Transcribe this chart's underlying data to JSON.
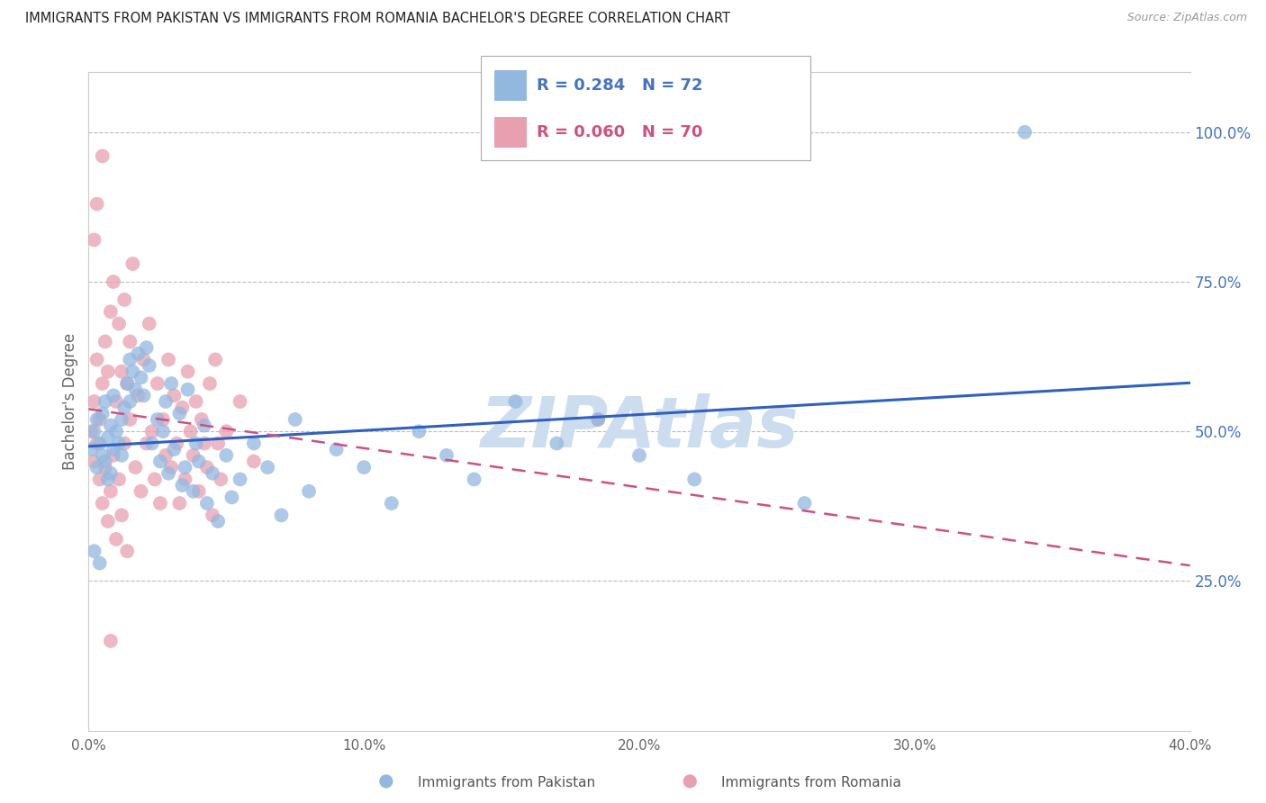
{
  "title": "IMMIGRANTS FROM PAKISTAN VS IMMIGRANTS FROM ROMANIA BACHELOR'S DEGREE CORRELATION CHART",
  "source": "Source: ZipAtlas.com",
  "ylabel": "Bachelor's Degree",
  "xlim": [
    0.0,
    0.4
  ],
  "ylim": [
    0.0,
    1.1
  ],
  "xtick_labels": [
    "0.0%",
    "10.0%",
    "20.0%",
    "30.0%",
    "40.0%"
  ],
  "xtick_vals": [
    0.0,
    0.1,
    0.2,
    0.3,
    0.4
  ],
  "ytick_labels_right": [
    "25.0%",
    "50.0%",
    "75.0%",
    "100.0%"
  ],
  "ytick_vals_right": [
    0.25,
    0.5,
    0.75,
    1.0
  ],
  "pakistan_color": "#92b8e0",
  "romania_color": "#e8a0b0",
  "pakistan_R": 0.284,
  "pakistan_N": 72,
  "romania_R": 0.06,
  "romania_N": 70,
  "pakistan_line_color": "#3060c0",
  "romania_line_color": "#d05080",
  "watermark": "ZIPAtlas",
  "watermark_color": "#ccddf0",
  "legend_label_pakistan": "Immigrants from Pakistan",
  "legend_label_romania": "Immigrants from Romania",
  "pakistan_x": [
    0.001,
    0.002,
    0.003,
    0.003,
    0.004,
    0.005,
    0.005,
    0.006,
    0.006,
    0.007,
    0.007,
    0.008,
    0.008,
    0.009,
    0.009,
    0.01,
    0.011,
    0.012,
    0.012,
    0.013,
    0.014,
    0.015,
    0.015,
    0.016,
    0.017,
    0.018,
    0.019,
    0.02,
    0.021,
    0.022,
    0.023,
    0.025,
    0.026,
    0.027,
    0.028,
    0.029,
    0.03,
    0.031,
    0.033,
    0.034,
    0.035,
    0.036,
    0.038,
    0.039,
    0.04,
    0.042,
    0.043,
    0.045,
    0.047,
    0.05,
    0.052,
    0.055,
    0.06,
    0.065,
    0.07,
    0.075,
    0.08,
    0.09,
    0.1,
    0.11,
    0.12,
    0.13,
    0.14,
    0.155,
    0.17,
    0.185,
    0.2,
    0.22,
    0.26,
    0.34,
    0.002,
    0.004
  ],
  "pakistan_y": [
    0.47,
    0.5,
    0.44,
    0.52,
    0.48,
    0.46,
    0.53,
    0.45,
    0.55,
    0.42,
    0.49,
    0.51,
    0.43,
    0.47,
    0.56,
    0.5,
    0.48,
    0.52,
    0.46,
    0.54,
    0.58,
    0.62,
    0.55,
    0.6,
    0.57,
    0.63,
    0.59,
    0.56,
    0.64,
    0.61,
    0.48,
    0.52,
    0.45,
    0.5,
    0.55,
    0.43,
    0.58,
    0.47,
    0.53,
    0.41,
    0.44,
    0.57,
    0.4,
    0.48,
    0.45,
    0.51,
    0.38,
    0.43,
    0.35,
    0.46,
    0.39,
    0.42,
    0.48,
    0.44,
    0.36,
    0.52,
    0.4,
    0.47,
    0.44,
    0.38,
    0.5,
    0.46,
    0.42,
    0.55,
    0.48,
    0.52,
    0.46,
    0.42,
    0.38,
    1.0,
    0.3,
    0.28
  ],
  "romania_x": [
    0.001,
    0.002,
    0.002,
    0.003,
    0.003,
    0.004,
    0.004,
    0.005,
    0.005,
    0.006,
    0.006,
    0.007,
    0.007,
    0.008,
    0.008,
    0.009,
    0.009,
    0.01,
    0.01,
    0.011,
    0.011,
    0.012,
    0.012,
    0.013,
    0.013,
    0.014,
    0.014,
    0.015,
    0.015,
    0.016,
    0.017,
    0.018,
    0.019,
    0.02,
    0.021,
    0.022,
    0.023,
    0.024,
    0.025,
    0.026,
    0.027,
    0.028,
    0.029,
    0.03,
    0.031,
    0.032,
    0.033,
    0.034,
    0.035,
    0.036,
    0.037,
    0.038,
    0.039,
    0.04,
    0.041,
    0.042,
    0.043,
    0.044,
    0.045,
    0.046,
    0.047,
    0.048,
    0.05,
    0.055,
    0.06,
    0.185,
    0.002,
    0.003,
    0.005,
    0.008
  ],
  "romania_y": [
    0.5,
    0.55,
    0.45,
    0.48,
    0.62,
    0.52,
    0.42,
    0.58,
    0.38,
    0.65,
    0.44,
    0.6,
    0.35,
    0.7,
    0.4,
    0.75,
    0.46,
    0.55,
    0.32,
    0.68,
    0.42,
    0.6,
    0.36,
    0.72,
    0.48,
    0.58,
    0.3,
    0.65,
    0.52,
    0.78,
    0.44,
    0.56,
    0.4,
    0.62,
    0.48,
    0.68,
    0.5,
    0.42,
    0.58,
    0.38,
    0.52,
    0.46,
    0.62,
    0.44,
    0.56,
    0.48,
    0.38,
    0.54,
    0.42,
    0.6,
    0.5,
    0.46,
    0.55,
    0.4,
    0.52,
    0.48,
    0.44,
    0.58,
    0.36,
    0.62,
    0.48,
    0.42,
    0.5,
    0.55,
    0.45,
    0.52,
    0.82,
    0.88,
    0.96,
    0.15
  ]
}
